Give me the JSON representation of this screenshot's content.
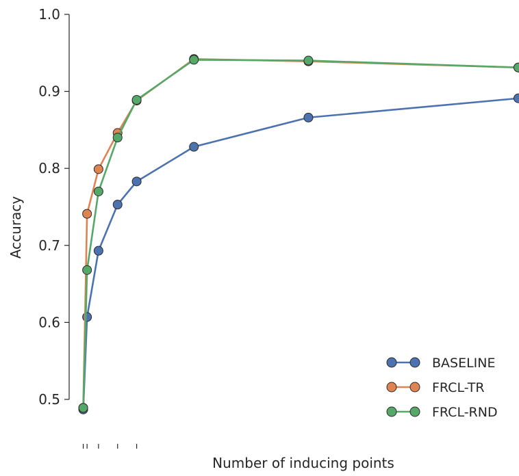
{
  "chart_data": {
    "type": "line",
    "title": "",
    "xlabel": "Number of inducing points",
    "ylabel": "Accuracy",
    "xlim": [
      0,
      115
    ],
    "ylim": [
      0.5,
      1.0
    ],
    "yticks": [
      0.5,
      0.6,
      0.7,
      0.8,
      0.9,
      1.0
    ],
    "ytick_labels": [
      "0.5",
      "0.6",
      "0.7",
      "0.8",
      "0.9",
      "1.0"
    ],
    "xticks": [
      1,
      2,
      5,
      10,
      15
    ],
    "grid": false,
    "legend_position": "bottom-right",
    "x": [
      1,
      2,
      5,
      10,
      15,
      30,
      60,
      115
    ],
    "series": [
      {
        "name": "BASELINE",
        "color": "#4c72b0",
        "values": [
          0.487,
          0.607,
          0.693,
          0.753,
          0.783,
          0.828,
          0.866,
          0.891
        ]
      },
      {
        "name": "FRCL-TR",
        "color": "#dd8452",
        "values": [
          0.489,
          0.741,
          0.799,
          0.846,
          0.888,
          0.942,
          0.939,
          0.931
        ]
      },
      {
        "name": "FRCL-RND",
        "color": "#55a868",
        "values": [
          0.489,
          0.668,
          0.77,
          0.84,
          0.889,
          0.941,
          0.94,
          0.931
        ]
      }
    ]
  }
}
